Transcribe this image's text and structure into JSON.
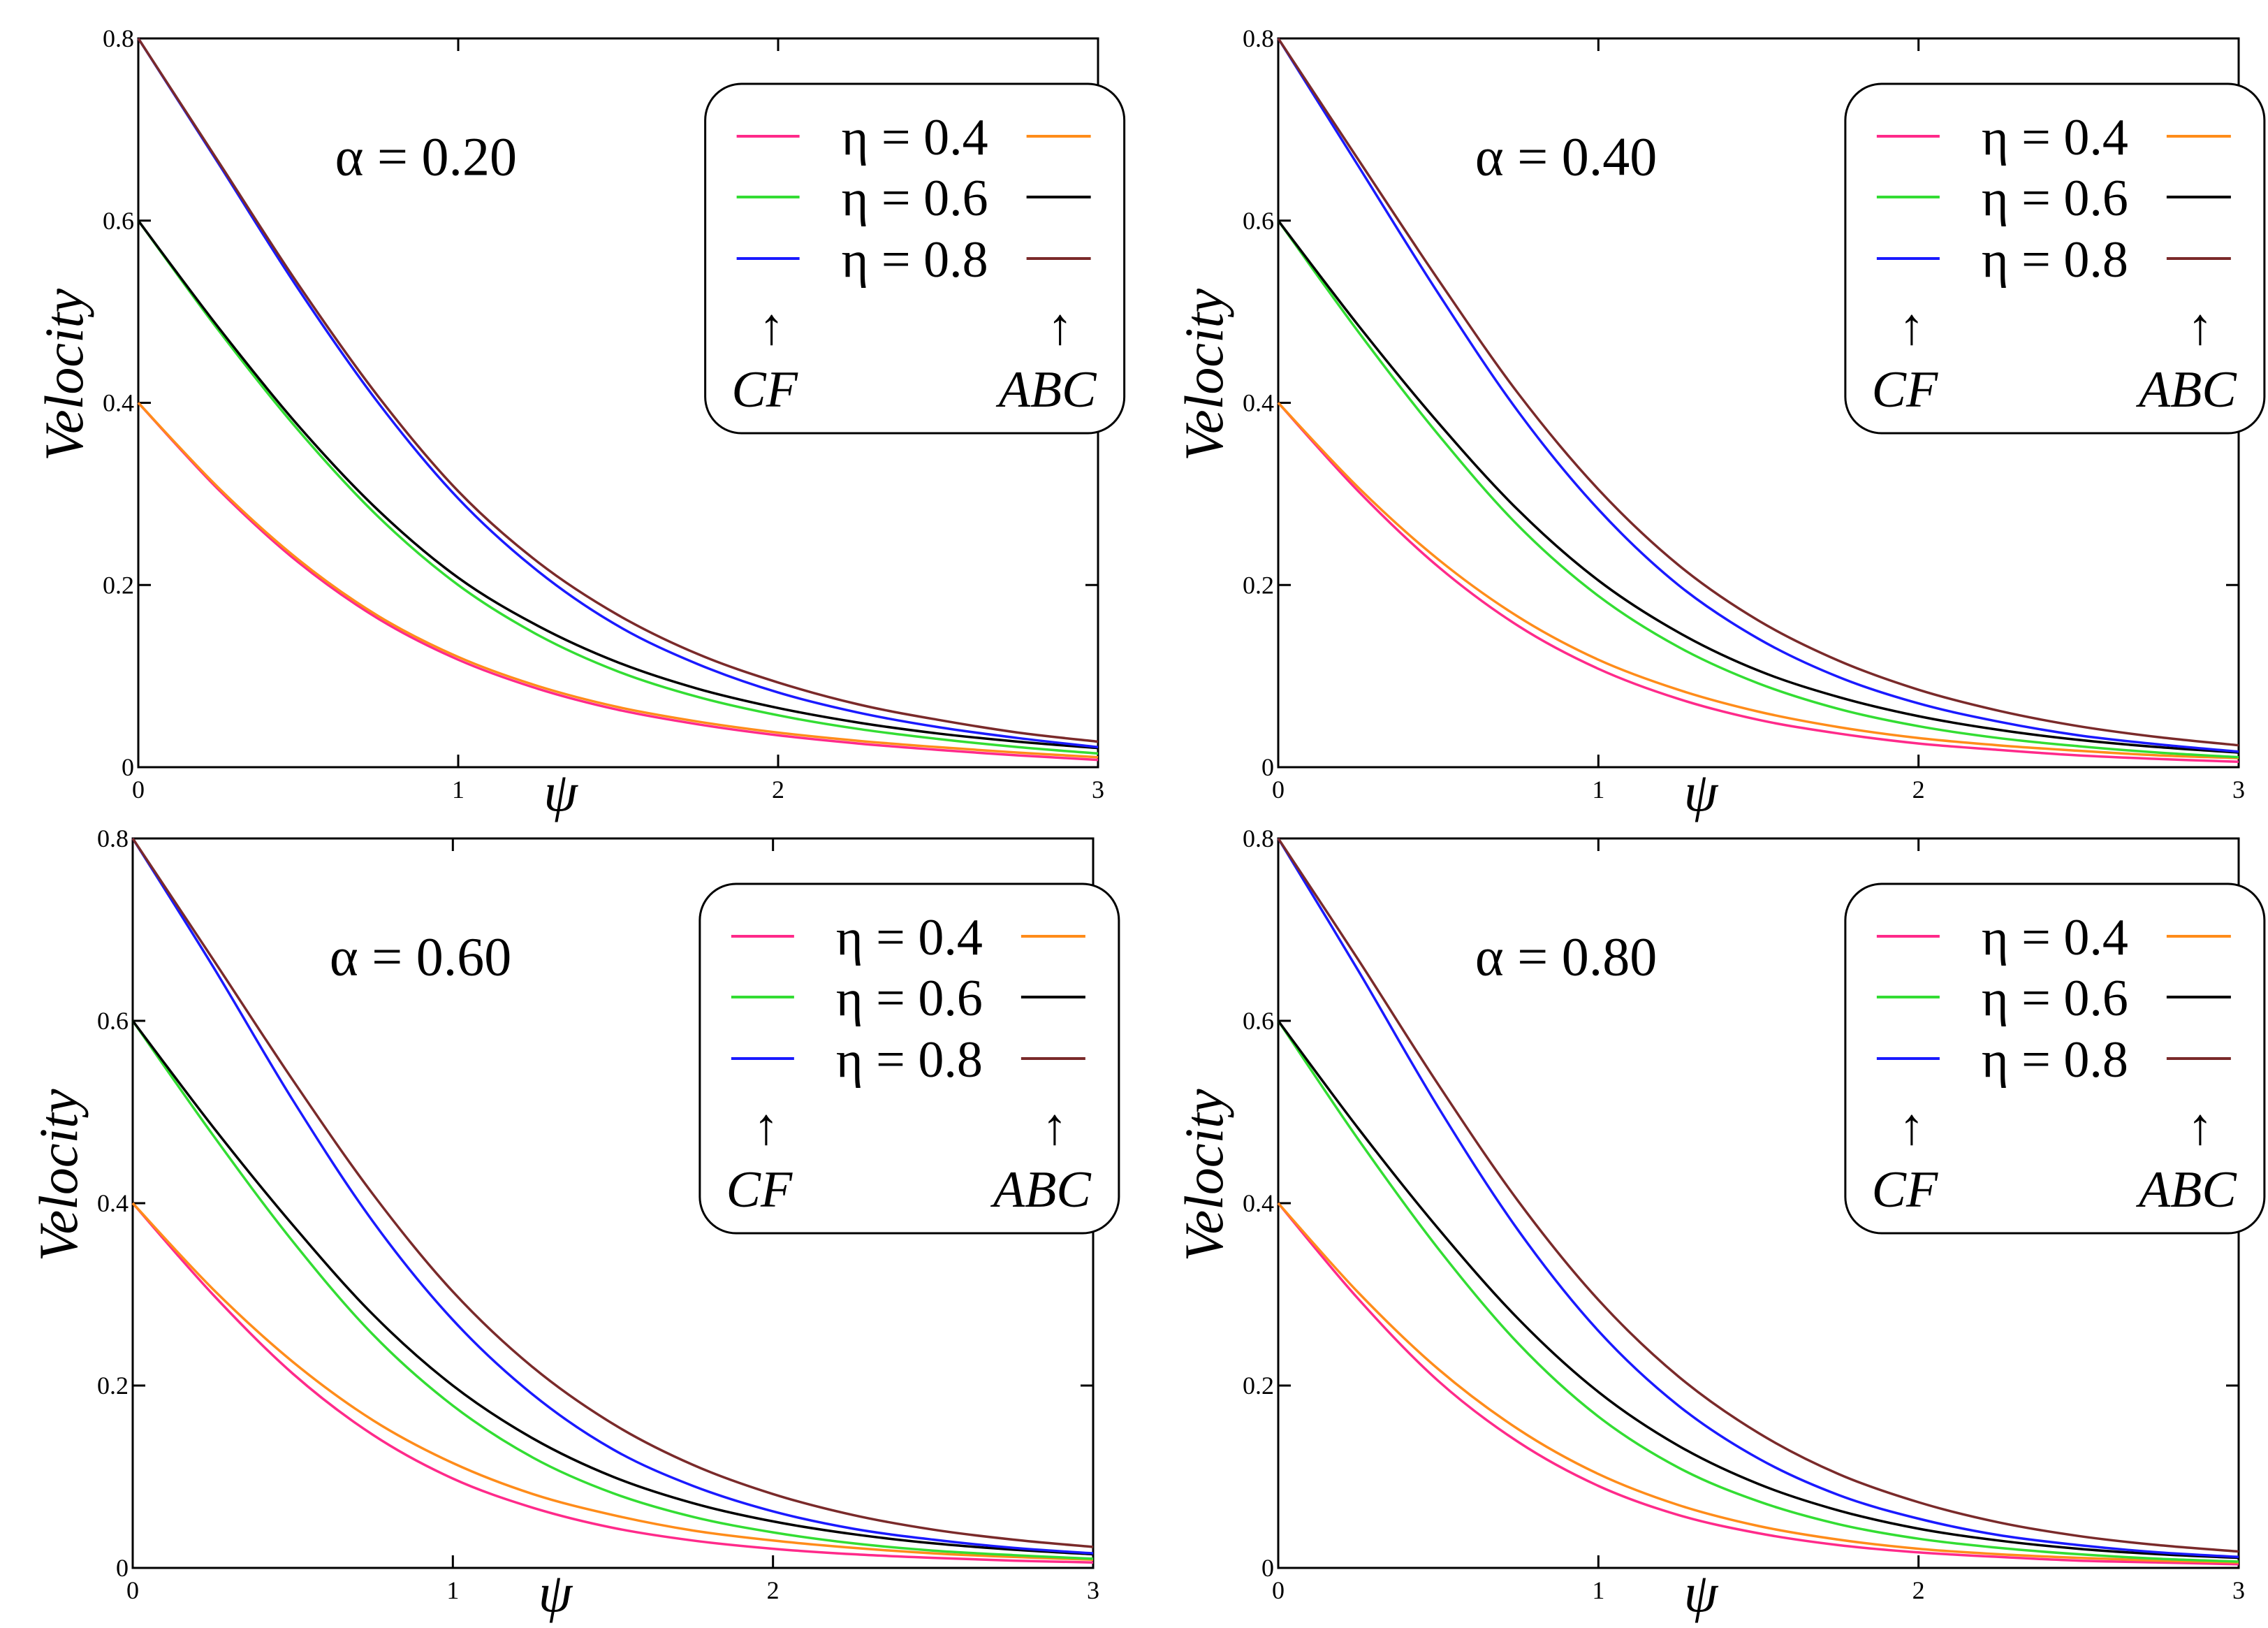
{
  "chart_data": [
    {
      "type": "line",
      "title": "α = 0.20",
      "alpha_label": "α = 0.20",
      "xlabel": "ψ",
      "ylabel": "Velocity",
      "xlim": [
        0,
        3
      ],
      "ylim": [
        0,
        0.8
      ],
      "xticks": [
        "0",
        "1",
        "2",
        "3"
      ],
      "yticks": [
        "0",
        "0.2",
        "0.4",
        "0.6",
        "0.8"
      ],
      "x": [
        0,
        0.25,
        0.5,
        0.75,
        1,
        1.25,
        1.5,
        1.75,
        2,
        2.25,
        2.5,
        2.75,
        3
      ],
      "series": [
        {
          "name": "CF η = 0.4",
          "color": "#ff2a8a",
          "values": [
            0.4,
            0.305,
            0.225,
            0.163,
            0.118,
            0.086,
            0.063,
            0.047,
            0.035,
            0.026,
            0.019,
            0.013,
            0.008
          ]
        },
        {
          "name": "ABC η = 0.4",
          "color": "#ff8c1a",
          "values": [
            0.4,
            0.307,
            0.228,
            0.166,
            0.121,
            0.089,
            0.066,
            0.05,
            0.038,
            0.029,
            0.022,
            0.016,
            0.011
          ]
        },
        {
          "name": "CF η = 0.6",
          "color": "#33dd33",
          "values": [
            0.6,
            0.48,
            0.37,
            0.275,
            0.2,
            0.145,
            0.105,
            0.077,
            0.057,
            0.042,
            0.031,
            0.022,
            0.015
          ]
        },
        {
          "name": "ABC η = 0.6",
          "color": "#000000",
          "values": [
            0.6,
            0.483,
            0.375,
            0.282,
            0.208,
            0.155,
            0.115,
            0.086,
            0.065,
            0.049,
            0.037,
            0.028,
            0.021
          ]
        },
        {
          "name": "CF η = 0.8",
          "color": "#1a1aff",
          "values": [
            0.8,
            0.663,
            0.525,
            0.4,
            0.295,
            0.215,
            0.155,
            0.113,
            0.082,
            0.06,
            0.044,
            0.032,
            0.022
          ]
        },
        {
          "name": "ABC η = 0.8",
          "color": "#7a2a2a",
          "values": [
            0.8,
            0.665,
            0.53,
            0.407,
            0.303,
            0.225,
            0.167,
            0.124,
            0.093,
            0.069,
            0.052,
            0.038,
            0.028
          ]
        }
      ],
      "legend": {
        "rows": [
          "η = 0.4",
          "η = 0.6",
          "η = 0.8"
        ],
        "left_label": "CF",
        "right_label": "ABC",
        "arrow": "↑",
        "position": "top-right"
      }
    },
    {
      "type": "line",
      "title": "α = 0.40",
      "alpha_label": "α = 0.40",
      "xlabel": "ψ",
      "ylabel": "Velocity",
      "xlim": [
        0,
        3
      ],
      "ylim": [
        0,
        0.8
      ],
      "xticks": [
        "0",
        "1",
        "2",
        "3"
      ],
      "yticks": [
        "0",
        "0.2",
        "0.4",
        "0.6",
        "0.8"
      ],
      "x": [
        0,
        0.25,
        0.5,
        0.75,
        1,
        1.25,
        1.5,
        1.75,
        2,
        2.25,
        2.5,
        2.75,
        3
      ],
      "series": [
        {
          "name": "CF η = 0.4",
          "color": "#ff2a8a",
          "values": [
            0.4,
            0.303,
            0.22,
            0.155,
            0.108,
            0.075,
            0.052,
            0.037,
            0.026,
            0.019,
            0.013,
            0.009,
            0.006
          ]
        },
        {
          "name": "ABC η = 0.4",
          "color": "#ff8c1a",
          "values": [
            0.4,
            0.307,
            0.228,
            0.165,
            0.118,
            0.085,
            0.061,
            0.044,
            0.032,
            0.024,
            0.018,
            0.013,
            0.01
          ]
        },
        {
          "name": "CF η = 0.6",
          "color": "#33dd33",
          "values": [
            0.6,
            0.478,
            0.365,
            0.265,
            0.188,
            0.132,
            0.092,
            0.064,
            0.045,
            0.032,
            0.023,
            0.016,
            0.011
          ]
        },
        {
          "name": "ABC η = 0.6",
          "color": "#000000",
          "values": [
            0.6,
            0.485,
            0.378,
            0.282,
            0.205,
            0.148,
            0.106,
            0.077,
            0.056,
            0.041,
            0.03,
            0.022,
            0.016
          ]
        },
        {
          "name": "CF η = 0.8",
          "color": "#1a1aff",
          "values": [
            0.8,
            0.66,
            0.52,
            0.39,
            0.283,
            0.2,
            0.141,
            0.099,
            0.07,
            0.05,
            0.035,
            0.025,
            0.017
          ]
        },
        {
          "name": "ABC η = 0.8",
          "color": "#7a2a2a",
          "values": [
            0.8,
            0.667,
            0.535,
            0.41,
            0.305,
            0.222,
            0.161,
            0.117,
            0.085,
            0.062,
            0.045,
            0.033,
            0.024
          ]
        }
      ],
      "legend": {
        "rows": [
          "η = 0.4",
          "η = 0.6",
          "η = 0.8"
        ],
        "left_label": "CF",
        "right_label": "ABC",
        "arrow": "↑",
        "position": "top-right"
      }
    },
    {
      "type": "line",
      "title": "α = 0.60",
      "alpha_label": "α = 0.60",
      "xlabel": "ψ",
      "ylabel": "Velocity",
      "xlim": [
        0,
        3
      ],
      "ylim": [
        0,
        0.8
      ],
      "xticks": [
        "0",
        "1",
        "2",
        "3"
      ],
      "yticks": [
        "0",
        "0.2",
        "0.4",
        "0.6",
        "0.8"
      ],
      "x": [
        0,
        0.25,
        0.5,
        0.75,
        1,
        1.25,
        1.5,
        1.75,
        2,
        2.25,
        2.5,
        2.75,
        3
      ],
      "series": [
        {
          "name": "CF η = 0.4",
          "color": "#ff2a8a",
          "values": [
            0.4,
            0.3,
            0.213,
            0.146,
            0.098,
            0.066,
            0.044,
            0.03,
            0.021,
            0.015,
            0.011,
            0.008,
            0.006
          ]
        },
        {
          "name": "ABC η = 0.4",
          "color": "#ff8c1a",
          "values": [
            0.4,
            0.306,
            0.226,
            0.162,
            0.115,
            0.081,
            0.058,
            0.041,
            0.03,
            0.022,
            0.016,
            0.012,
            0.009
          ]
        },
        {
          "name": "CF η = 0.6",
          "color": "#33dd33",
          "values": [
            0.6,
            0.475,
            0.358,
            0.256,
            0.178,
            0.121,
            0.082,
            0.056,
            0.039,
            0.027,
            0.019,
            0.014,
            0.01
          ]
        },
        {
          "name": "ABC η = 0.6",
          "color": "#000000",
          "values": [
            0.6,
            0.484,
            0.376,
            0.278,
            0.2,
            0.142,
            0.1,
            0.071,
            0.051,
            0.037,
            0.027,
            0.02,
            0.015
          ]
        },
        {
          "name": "CF η = 0.8",
          "color": "#1a1aff",
          "values": [
            0.8,
            0.66,
            0.513,
            0.38,
            0.272,
            0.19,
            0.13,
            0.09,
            0.062,
            0.043,
            0.031,
            0.022,
            0.016
          ]
        },
        {
          "name": "ABC η = 0.8",
          "color": "#7a2a2a",
          "values": [
            0.8,
            0.668,
            0.535,
            0.41,
            0.303,
            0.22,
            0.158,
            0.113,
            0.081,
            0.058,
            0.042,
            0.031,
            0.023
          ]
        }
      ],
      "legend": {
        "rows": [
          "η = 0.4",
          "η = 0.6",
          "η = 0.8"
        ],
        "left_label": "CF",
        "right_label": "ABC",
        "arrow": "↑",
        "position": "top-right"
      }
    },
    {
      "type": "line",
      "title": "α = 0.80",
      "alpha_label": "α = 0.80",
      "xlabel": "ψ",
      "ylabel": "Velocity",
      "xlim": [
        0,
        3
      ],
      "ylim": [
        0,
        0.8
      ],
      "xticks": [
        "0",
        "1",
        "2",
        "3"
      ],
      "yticks": [
        "0",
        "0.2",
        "0.4",
        "0.6",
        "0.8"
      ],
      "x": [
        0,
        0.25,
        0.5,
        0.75,
        1,
        1.25,
        1.5,
        1.75,
        2,
        2.25,
        2.5,
        2.75,
        3
      ],
      "series": [
        {
          "name": "CF η = 0.4",
          "color": "#ff2a8a",
          "values": [
            0.4,
            0.295,
            0.205,
            0.138,
            0.09,
            0.058,
            0.038,
            0.025,
            0.017,
            0.012,
            0.008,
            0.006,
            0.004
          ]
        },
        {
          "name": "ABC η = 0.4",
          "color": "#ff8c1a",
          "values": [
            0.4,
            0.302,
            0.218,
            0.152,
            0.103,
            0.069,
            0.046,
            0.031,
            0.021,
            0.015,
            0.011,
            0.008,
            0.006
          ]
        },
        {
          "name": "CF η = 0.6",
          "color": "#33dd33",
          "values": [
            0.6,
            0.47,
            0.35,
            0.246,
            0.166,
            0.11,
            0.073,
            0.048,
            0.032,
            0.022,
            0.015,
            0.01,
            0.007
          ]
        },
        {
          "name": "ABC η = 0.6",
          "color": "#000000",
          "values": [
            0.6,
            0.482,
            0.372,
            0.273,
            0.193,
            0.134,
            0.092,
            0.063,
            0.043,
            0.03,
            0.021,
            0.015,
            0.011
          ]
        },
        {
          "name": "CF η = 0.8",
          "color": "#1a1aff",
          "values": [
            0.8,
            0.655,
            0.505,
            0.37,
            0.26,
            0.178,
            0.12,
            0.08,
            0.054,
            0.036,
            0.025,
            0.017,
            0.012
          ]
        },
        {
          "name": "ABC η = 0.8",
          "color": "#7a2a2a",
          "values": [
            0.8,
            0.667,
            0.53,
            0.402,
            0.294,
            0.21,
            0.148,
            0.103,
            0.072,
            0.05,
            0.035,
            0.025,
            0.018
          ]
        }
      ],
      "legend": {
        "rows": [
          "η = 0.4",
          "η = 0.6",
          "η = 0.8"
        ],
        "left_label": "CF",
        "right_label": "ABC",
        "arrow": "↑",
        "position": "top-right"
      }
    }
  ]
}
